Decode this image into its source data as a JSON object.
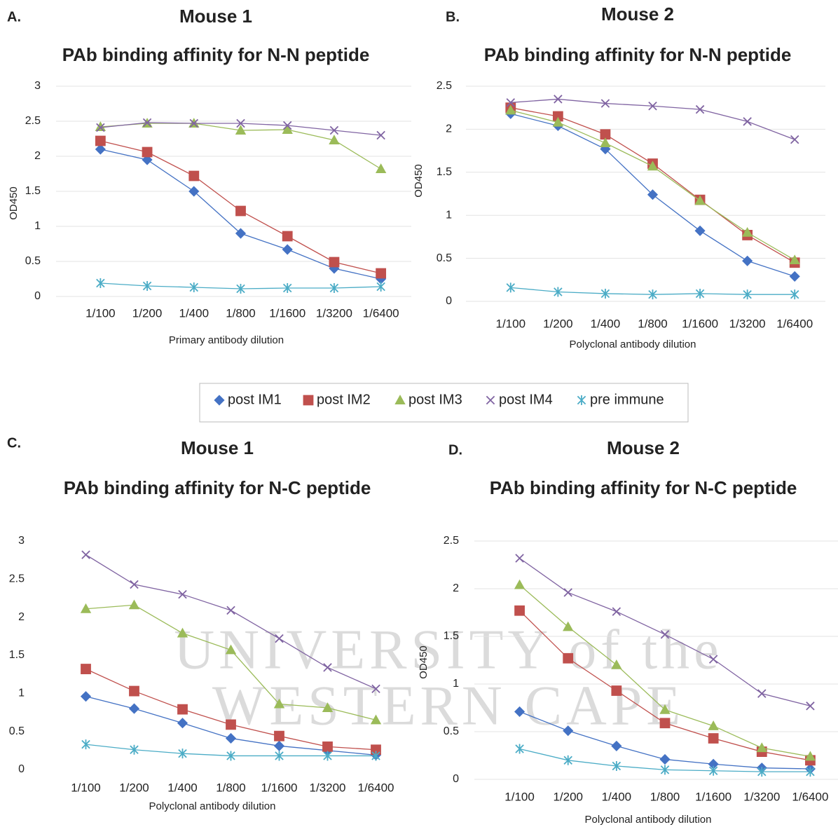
{
  "chart_data": [
    {
      "type": "line",
      "label": "A.",
      "title": "Mouse 1",
      "subtitle": "PAb binding affinity for N-N peptide",
      "categories": [
        "1/100",
        "1/200",
        "1/400",
        "1/800",
        "1/1600",
        "1/3200",
        "1/6400"
      ],
      "xlabel": "Primary antibody dilution",
      "ylabel": "OD450",
      "ylim": [
        0,
        3
      ],
      "yticks": [
        0,
        0.5,
        1,
        1.5,
        2,
        2.5,
        3
      ],
      "grid": true,
      "series": [
        {
          "values": [
            2.1,
            1.95,
            1.5,
            0.9,
            0.67,
            0.4,
            0.25
          ]
        },
        {
          "values": [
            2.22,
            2.06,
            1.72,
            1.22,
            0.86,
            0.49,
            0.33
          ]
        },
        {
          "values": [
            2.42,
            2.47,
            2.47,
            2.37,
            2.38,
            2.23,
            1.82
          ]
        },
        {
          "values": [
            2.41,
            2.48,
            2.47,
            2.47,
            2.44,
            2.37,
            2.3
          ]
        },
        {
          "values": [
            0.19,
            0.15,
            0.13,
            0.11,
            0.12,
            0.12,
            0.14
          ]
        }
      ]
    },
    {
      "type": "line",
      "label": "B.",
      "title": "Mouse 2",
      "subtitle": "PAb binding affinity for N-N peptide",
      "categories": [
        "1/100",
        "1/200",
        "1/400",
        "1/800",
        "1/1600",
        "1/3200",
        "1/6400"
      ],
      "xlabel": "Polyclonal antibody dilution",
      "ylabel": "OD450",
      "ylim": [
        0,
        2.5
      ],
      "yticks": [
        0,
        0.5,
        1,
        1.5,
        2,
        2.5
      ],
      "grid": true,
      "series": [
        {
          "values": [
            2.18,
            2.04,
            1.77,
            1.24,
            0.82,
            0.47,
            0.29
          ]
        },
        {
          "values": [
            2.25,
            2.15,
            1.94,
            1.6,
            1.18,
            0.77,
            0.45
          ]
        },
        {
          "values": [
            2.22,
            2.08,
            1.84,
            1.57,
            1.17,
            0.8,
            0.48
          ]
        },
        {
          "values": [
            2.31,
            2.35,
            2.3,
            2.27,
            2.23,
            2.09,
            1.88
          ]
        },
        {
          "values": [
            0.16,
            0.11,
            0.09,
            0.08,
            0.09,
            0.08,
            0.08
          ]
        }
      ]
    },
    {
      "type": "line",
      "label": "C.",
      "title": "Mouse 1",
      "subtitle": "PAb binding affinity for N-C peptide",
      "categories": [
        "1/100",
        "1/200",
        "1/400",
        "1/800",
        "1/1600",
        "1/3200",
        "1/6400"
      ],
      "xlabel": "Polyclonal antibody dilution",
      "ylim": [
        0,
        3
      ],
      "yticks": [
        0,
        0.5,
        1,
        1.5,
        2,
        2.5,
        3
      ],
      "grid": false,
      "series": [
        {
          "values": [
            0.96,
            0.8,
            0.61,
            0.41,
            0.31,
            0.25,
            0.19
          ]
        },
        {
          "values": [
            1.32,
            1.03,
            0.79,
            0.59,
            0.44,
            0.3,
            0.26
          ]
        },
        {
          "values": [
            2.11,
            2.16,
            1.79,
            1.57,
            0.86,
            0.81,
            0.65
          ]
        },
        {
          "values": [
            2.82,
            2.43,
            2.3,
            2.09,
            1.72,
            1.34,
            1.06
          ]
        },
        {
          "values": [
            0.33,
            0.26,
            0.21,
            0.18,
            0.18,
            0.18,
            0.18
          ]
        }
      ]
    },
    {
      "type": "line",
      "label": "D.",
      "title": "Mouse 2",
      "subtitle": "PAb binding affinity for N-C peptide",
      "categories": [
        "1/100",
        "1/200",
        "1/400",
        "1/800",
        "1/1600",
        "1/3200",
        "1/6400"
      ],
      "xlabel": "Polyclonal antibody dilution",
      "ylabel": "OD450",
      "ylim": [
        0,
        2.5
      ],
      "yticks": [
        0,
        0.5,
        1,
        1.5,
        2,
        2.5
      ],
      "grid": true,
      "series": [
        {
          "values": [
            0.71,
            0.51,
            0.35,
            0.21,
            0.16,
            0.12,
            0.11
          ]
        },
        {
          "values": [
            1.77,
            1.27,
            0.93,
            0.59,
            0.43,
            0.29,
            0.2
          ]
        },
        {
          "values": [
            2.04,
            1.6,
            1.2,
            0.73,
            0.56,
            0.33,
            0.24
          ]
        },
        {
          "values": [
            2.32,
            1.96,
            1.76,
            1.52,
            1.26,
            0.9,
            0.77
          ]
        },
        {
          "values": [
            0.32,
            0.2,
            0.14,
            0.1,
            0.09,
            0.08,
            0.08
          ]
        }
      ]
    }
  ],
  "legend": [
    {
      "name": "post IM1",
      "color": "#4472c4",
      "marker": "diamond"
    },
    {
      "name": "post IM2",
      "color": "#c0504d",
      "marker": "square"
    },
    {
      "name": "post IM3",
      "color": "#9bbb59",
      "marker": "triangle"
    },
    {
      "name": "post IM4",
      "color": "#8064a2",
      "marker": "x"
    },
    {
      "name": "pre immune",
      "color": "#4bacc6",
      "marker": "star"
    }
  ],
  "watermark": [
    "UNIVERSITY of the",
    "WESTERN CAPE"
  ]
}
